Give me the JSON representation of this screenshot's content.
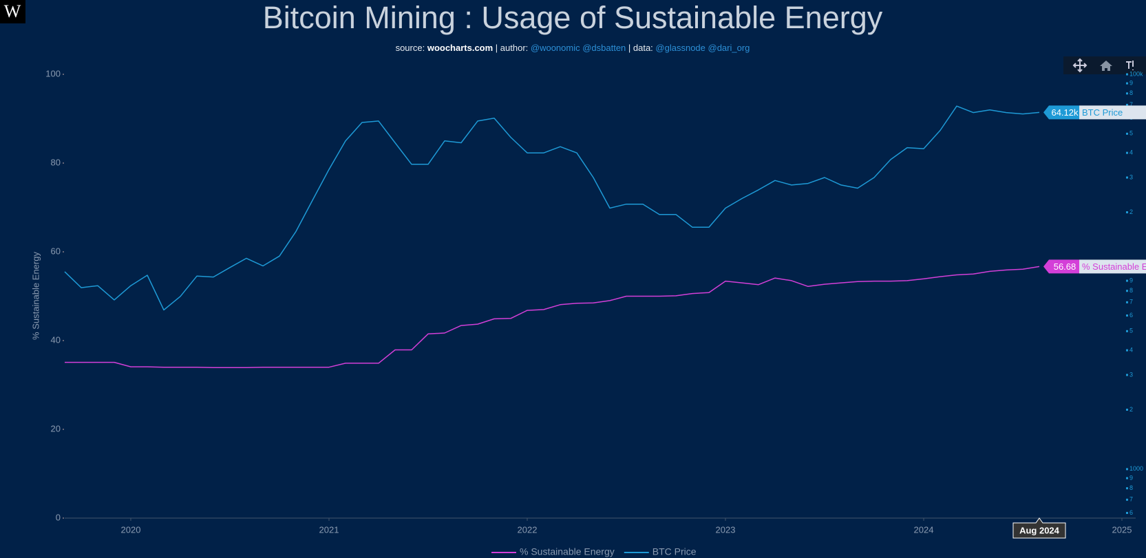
{
  "logo": "W",
  "chart_data": {
    "type": "line",
    "title": "Bitcoin Mining : Usage of Sustainable Energy",
    "subtitle": [
      "source: ",
      "woocharts.com",
      " | author: ",
      "@woonomic @dsbatten",
      " | data: ",
      "@glassnode @dari_org"
    ],
    "ylabel": "% Sustainable Energy",
    "x": [
      "2019-09",
      "2019-10",
      "2019-11",
      "2019-12",
      "2020-01",
      "2020-02",
      "2020-03",
      "2020-04",
      "2020-05",
      "2020-06",
      "2020-07",
      "2020-08",
      "2020-09",
      "2020-10",
      "2020-11",
      "2020-12",
      "2021-01",
      "2021-02",
      "2021-03",
      "2021-04",
      "2021-05",
      "2021-06",
      "2021-07",
      "2021-08",
      "2021-09",
      "2021-10",
      "2021-11",
      "2021-12",
      "2022-01",
      "2022-02",
      "2022-03",
      "2022-04",
      "2022-05",
      "2022-06",
      "2022-07",
      "2022-08",
      "2022-09",
      "2022-10",
      "2022-11",
      "2022-12",
      "2023-01",
      "2023-02",
      "2023-03",
      "2023-04",
      "2023-05",
      "2023-06",
      "2023-07",
      "2023-08",
      "2023-09",
      "2023-10",
      "2023-11",
      "2023-12",
      "2024-01",
      "2024-02",
      "2024-03",
      "2024-04",
      "2024-05",
      "2024-06",
      "2024-07",
      "2024-08"
    ],
    "xlim": [
      "2019-09",
      "2025-01"
    ],
    "xticks": [
      "2020",
      "2021",
      "2022",
      "2023",
      "2024",
      "2025"
    ],
    "ylim": [
      0,
      100
    ],
    "yticks": [
      0,
      20,
      40,
      60,
      80,
      100
    ],
    "y2lim": [
      565,
      100000
    ],
    "y2scale": "log",
    "y2ticks": [
      {
        "value": 100000,
        "label": "100k"
      },
      {
        "value": 90000,
        "label": "9"
      },
      {
        "value": 80000,
        "label": "8"
      },
      {
        "value": 70000,
        "label": "7"
      },
      {
        "value": 60000,
        "label": "6"
      },
      {
        "value": 50000,
        "label": "5"
      },
      {
        "value": 40000,
        "label": "4"
      },
      {
        "value": 30000,
        "label": "3"
      },
      {
        "value": 20000,
        "label": "2"
      },
      {
        "value": 9000,
        "label": "9"
      },
      {
        "value": 8000,
        "label": "8"
      },
      {
        "value": 7000,
        "label": "7"
      },
      {
        "value": 6000,
        "label": "6"
      },
      {
        "value": 5000,
        "label": "5"
      },
      {
        "value": 4000,
        "label": "4"
      },
      {
        "value": 3000,
        "label": "3"
      },
      {
        "value": 2000,
        "label": "2"
      },
      1000,
      {
        "value": 900,
        "label": "9"
      },
      {
        "value": 800,
        "label": "8"
      },
      {
        "value": 700,
        "label": "7"
      },
      {
        "value": 600,
        "label": "6"
      }
    ],
    "hover_label": "Aug 2024",
    "series": [
      {
        "name": "% Sustainable Energy",
        "color": "#d43fd8",
        "values": [
          35.1,
          35.1,
          35.1,
          35.1,
          34.1,
          34.1,
          34.0,
          34.0,
          34.0,
          33.9,
          33.9,
          33.9,
          34.0,
          34.0,
          34.0,
          34.0,
          34.0,
          34.9,
          34.9,
          34.9,
          37.9,
          37.9,
          41.5,
          41.7,
          43.4,
          43.7,
          44.9,
          45.0,
          46.8,
          47.0,
          48.1,
          48.4,
          48.5,
          49.0,
          50.0,
          50.0,
          50.0,
          50.1,
          50.6,
          50.8,
          53.4,
          53.0,
          52.6,
          54.1,
          53.5,
          52.2,
          52.7,
          53.0,
          53.3,
          53.4,
          53.4,
          53.5,
          53.9,
          54.4,
          54.8,
          55.0,
          55.6,
          55.9,
          56.1,
          56.68
        ],
        "end_label": "56.68"
      },
      {
        "name": "BTC Price",
        "color": "#1e9ad6",
        "axis": "y2",
        "values": [
          10000,
          8300,
          8500,
          7200,
          8500,
          9600,
          6400,
          7500,
          9500,
          9400,
          10500,
          11700,
          10700,
          12000,
          16000,
          23000,
          33000,
          46000,
          57000,
          58000,
          45000,
          35000,
          35000,
          46000,
          45000,
          58000,
          60000,
          48000,
          40000,
          40000,
          43000,
          40000,
          30000,
          21000,
          22000,
          22000,
          19500,
          19500,
          16800,
          16800,
          21000,
          23500,
          26000,
          29000,
          27500,
          28000,
          30000,
          27500,
          26500,
          30000,
          37000,
          42500,
          42000,
          52000,
          69000,
          64000,
          66000,
          64000,
          63000,
          64120
        ],
        "end_label": "64.12k"
      }
    ]
  }
}
